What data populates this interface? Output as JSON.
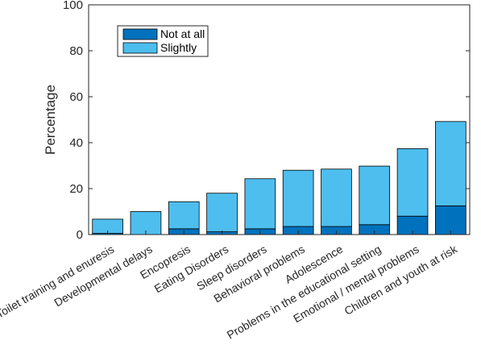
{
  "chart_data": {
    "type": "bar",
    "stacked": true,
    "categories": [
      "Toilet training and enuresis",
      "Developmental delays",
      "Encopresis",
      "Eating Disorders",
      "Sleep disorders",
      "Behavioral problems",
      "Adolescence",
      "Problems in the educational setting",
      "Emotional / mental problems",
      "Children and youth at risk"
    ],
    "series": [
      {
        "name": "Not at all",
        "color": "#0072BD",
        "values": [
          0.5,
          0,
          2.5,
          1.2,
          2.5,
          3.5,
          3.5,
          4.3,
          8,
          12.5
        ]
      },
      {
        "name": "Slightly",
        "color": "#4DBEEE",
        "values": [
          6.2,
          10,
          11.8,
          16.8,
          21.8,
          24.5,
          25,
          25.5,
          29.4,
          36.7
        ]
      }
    ],
    "xlabel": "",
    "ylabel": "Percentage",
    "ylim": [
      0,
      100
    ],
    "yticks": [
      0,
      20,
      40,
      60,
      80,
      100
    ],
    "grid": false,
    "legend_position": "top-left",
    "axis_color": "#262626"
  }
}
